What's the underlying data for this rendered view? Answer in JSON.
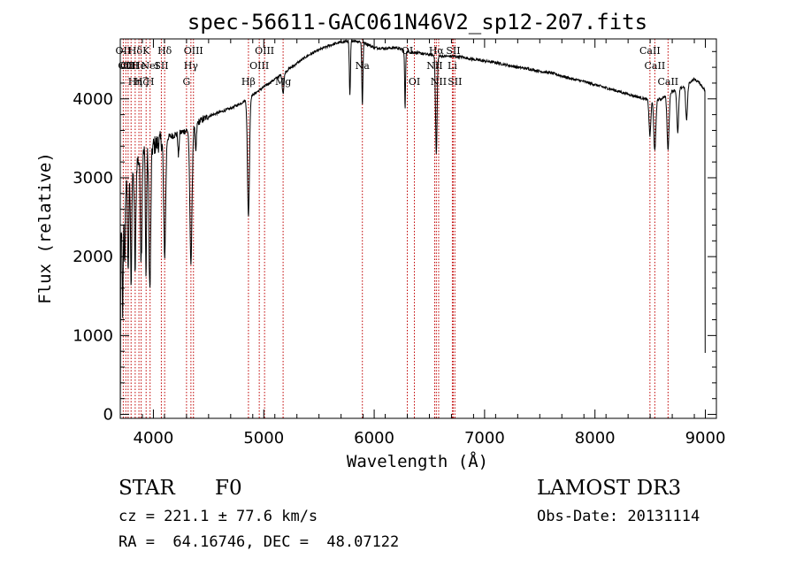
{
  "chart_data": {
    "type": "line",
    "title": "spec-56611-GAC061N46V2_sp12-207.fits",
    "xlabel": "Wavelength (Å)",
    "ylabel": "Flux (relative)",
    "xlim": [
      3700,
      9100
    ],
    "ylim": [
      -50,
      4760
    ],
    "x_ticks": [
      4000,
      5000,
      6000,
      7000,
      8000,
      9000
    ],
    "y_ticks": [
      0,
      1000,
      2000,
      3000,
      4000
    ],
    "grid": false,
    "continuum": {
      "x": [
        3700,
        3750,
        3800,
        3850,
        3900,
        3950,
        4000,
        4050,
        4100,
        4150,
        4200,
        4300,
        4400,
        4500,
        4600,
        4700,
        4800,
        4900,
        5000,
        5100,
        5200,
        5300,
        5400,
        5500,
        5600,
        5700,
        5800,
        5900,
        6000,
        6100,
        6200,
        6300,
        6400,
        6500,
        6600,
        6700,
        6800,
        6900,
        7000,
        7100,
        7200,
        7300,
        7400,
        7500,
        7600,
        7700,
        7800,
        7900,
        8000,
        8100,
        8200,
        8300,
        8400,
        8500,
        8600,
        8700,
        8800,
        8900,
        8950,
        9000
      ],
      "y": [
        2200,
        2900,
        2900,
        3200,
        3300,
        3350,
        3400,
        3450,
        3500,
        3520,
        3550,
        3600,
        3700,
        3780,
        3830,
        3880,
        3950,
        4050,
        4150,
        4250,
        4350,
        4450,
        4550,
        4620,
        4680,
        4720,
        4740,
        4720,
        4650,
        4640,
        4650,
        4600,
        4580,
        4560,
        4540,
        4540,
        4530,
        4500,
        4480,
        4460,
        4430,
        4400,
        4380,
        4350,
        4330,
        4290,
        4250,
        4220,
        4180,
        4140,
        4100,
        4060,
        4020,
        3980,
        4000,
        4100,
        4150,
        4250,
        4200,
        4100
      ]
    },
    "absorption_lines": [
      {
        "center": 3722,
        "depth": 1200,
        "width": 5
      },
      {
        "center": 3740,
        "depth": 900,
        "width": 4
      },
      {
        "center": 3771,
        "depth": 1100,
        "width": 5
      },
      {
        "center": 3798,
        "depth": 1200,
        "width": 5
      },
      {
        "center": 3835,
        "depth": 1300,
        "width": 6
      },
      {
        "center": 3889,
        "depth": 1300,
        "width": 7
      },
      {
        "center": 3933,
        "depth": 1600,
        "width": 5
      },
      {
        "center": 3968,
        "depth": 1800,
        "width": 8
      },
      {
        "center": 4102,
        "depth": 1500,
        "width": 9
      },
      {
        "center": 4227,
        "depth": 300,
        "width": 5
      },
      {
        "center": 4340,
        "depth": 1700,
        "width": 10
      },
      {
        "center": 4384,
        "depth": 350,
        "width": 6
      },
      {
        "center": 4861,
        "depth": 1500,
        "width": 9
      },
      {
        "center": 5175,
        "depth": 250,
        "width": 8
      },
      {
        "center": 5780,
        "depth": 700,
        "width": 5
      },
      {
        "center": 5893,
        "depth": 800,
        "width": 5
      },
      {
        "center": 6280,
        "depth": 750,
        "width": 4
      },
      {
        "center": 6563,
        "depth": 1250,
        "width": 7
      },
      {
        "center": 8498,
        "depth": 450,
        "width": 8
      },
      {
        "center": 8542,
        "depth": 650,
        "width": 9
      },
      {
        "center": 8662,
        "depth": 700,
        "width": 9
      },
      {
        "center": 8750,
        "depth": 550,
        "width": 8
      },
      {
        "center": 8830,
        "depth": 450,
        "width": 8
      }
    ],
    "line_markers": [
      {
        "wavelength": 3727,
        "labels": [
          "OII"
        ]
      },
      {
        "wavelength": 3750,
        "labels": [
          "",
          "OII"
        ]
      },
      {
        "wavelength": 3771,
        "labels": [
          "",
          "OII"
        ]
      },
      {
        "wavelength": 3798,
        "labels": [
          "",
          "OII"
        ]
      },
      {
        "wavelength": 3835,
        "labels": [
          "Hδ",
          "",
          "Hη"
        ]
      },
      {
        "wavelength": 3869,
        "labels": [
          "",
          "He"
        ]
      },
      {
        "wavelength": 3889,
        "labels": [
          "",
          "",
          "Hζ"
        ]
      },
      {
        "wavelength": 3934,
        "labels": [
          "K"
        ]
      },
      {
        "wavelength": 3970,
        "labels": [
          "",
          "NeI",
          "H"
        ]
      },
      {
        "wavelength": 4072,
        "labels": [
          "",
          "SII"
        ]
      },
      {
        "wavelength": 4102,
        "labels": [
          "Hδ"
        ]
      },
      {
        "wavelength": 4300,
        "labels": [
          "",
          "",
          "G"
        ]
      },
      {
        "wavelength": 4340,
        "labels": [
          "",
          "Hγ"
        ]
      },
      {
        "wavelength": 4363,
        "labels": [
          "OIII"
        ]
      },
      {
        "wavelength": 4861,
        "labels": [
          "",
          "",
          "Hβ"
        ]
      },
      {
        "wavelength": 4959,
        "labels": [
          "",
          "OIII"
        ]
      },
      {
        "wavelength": 5007,
        "labels": [
          "OIII"
        ]
      },
      {
        "wavelength": 5175,
        "labels": [
          "",
          "",
          "Mg"
        ]
      },
      {
        "wavelength": 5893,
        "labels": [
          "",
          "Na"
        ]
      },
      {
        "wavelength": 6300,
        "labels": [
          "OI"
        ]
      },
      {
        "wavelength": 6364,
        "labels": [
          "",
          "",
          "OI"
        ]
      },
      {
        "wavelength": 6548,
        "labels": [
          "",
          "NII"
        ]
      },
      {
        "wavelength": 6563,
        "labels": [
          "Hα"
        ]
      },
      {
        "wavelength": 6584,
        "labels": [
          "",
          "",
          "NII"
        ]
      },
      {
        "wavelength": 6708,
        "labels": [
          "",
          "Li"
        ]
      },
      {
        "wavelength": 6716,
        "labels": [
          "SII"
        ]
      },
      {
        "wavelength": 6731,
        "labels": [
          "",
          "",
          "SII"
        ]
      },
      {
        "wavelength": 8498,
        "labels": [
          "CaII"
        ]
      },
      {
        "wavelength": 8542,
        "labels": [
          "",
          "CaII"
        ]
      },
      {
        "wavelength": 8662,
        "labels": [
          "",
          "",
          "CaII"
        ]
      }
    ],
    "colors": {
      "spectrum": "#000000",
      "line_marker": "#c00000",
      "axes": "#000000"
    }
  },
  "info": {
    "object_class": "STAR",
    "subclass": "F0",
    "survey": "LAMOST DR3",
    "redshift": "cz = 221.1 ± 77.6 km/s",
    "obs_date": "Obs-Date: 20131114",
    "coords": "RA =  64.16746, DEC =  48.07122"
  }
}
